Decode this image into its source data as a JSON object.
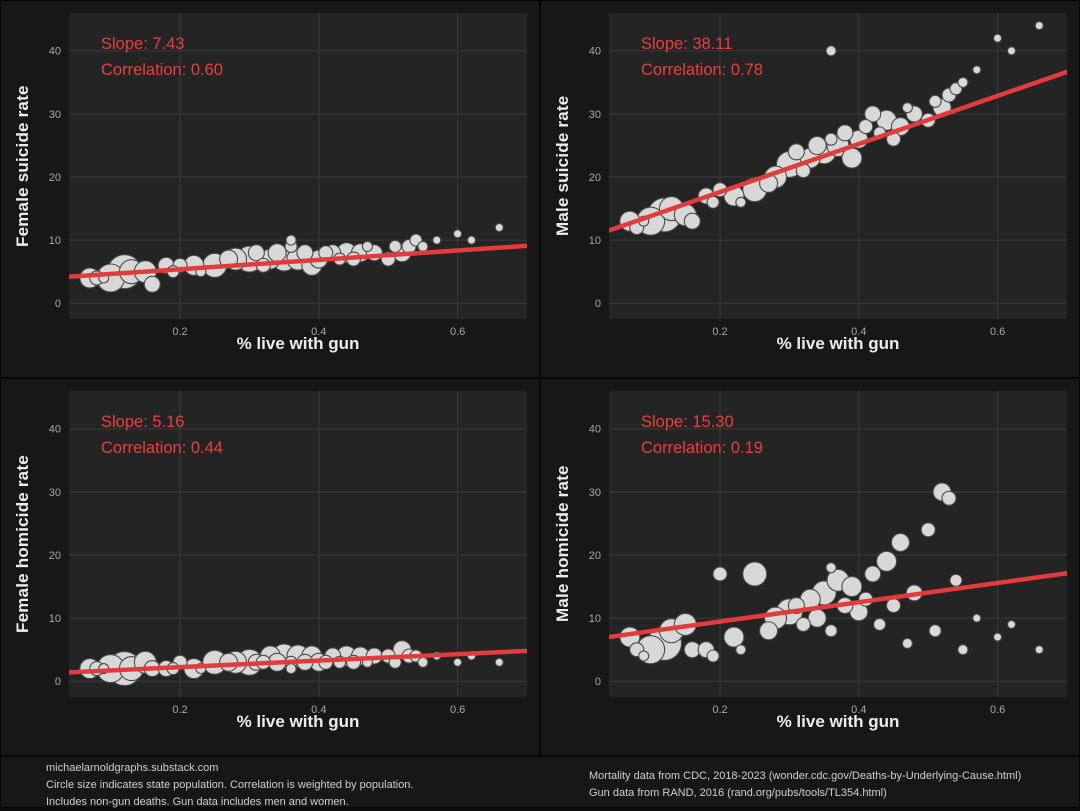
{
  "colors": {
    "page_bg": "#0b0b0b",
    "panel_bg": "#171717",
    "plot_bg": "#242424",
    "grid": "#3b3b3b",
    "point_fill": "#d8d8d8",
    "point_stroke": "#4a4a4a",
    "trend_red": "#e23b3b",
    "annotation_red": "#e8413c",
    "tick_text": "#a9a9a9",
    "axis_text": "#ececec"
  },
  "chart_data": {
    "type": "scatter",
    "xlabel": "% live with gun",
    "xlim": [
      0.04,
      0.7
    ],
    "xticks": [
      0.2,
      0.4,
      0.6
    ],
    "ylim": [
      -2.5,
      46
    ],
    "yticks": [
      0,
      10,
      20,
      30,
      40
    ],
    "grid": true,
    "legend": "none",
    "point_note": "circle size = state population",
    "x_shared": [
      0.07,
      0.08,
      0.09,
      0.1,
      0.12,
      0.13,
      0.15,
      0.16,
      0.18,
      0.19,
      0.2,
      0.22,
      0.23,
      0.25,
      0.27,
      0.28,
      0.3,
      0.31,
      0.32,
      0.33,
      0.34,
      0.35,
      0.36,
      0.36,
      0.37,
      0.38,
      0.39,
      0.4,
      0.41,
      0.42,
      0.43,
      0.44,
      0.45,
      0.46,
      0.47,
      0.48,
      0.5,
      0.51,
      0.52,
      0.53,
      0.54,
      0.55,
      0.57,
      0.6,
      0.62,
      0.66
    ],
    "sizes": [
      10,
      7,
      5,
      14,
      17,
      12,
      11,
      8,
      8,
      6,
      7,
      10,
      5,
      12,
      9,
      11,
      13,
      8,
      7,
      10,
      9,
      12,
      6,
      5,
      11,
      8,
      10,
      9,
      7,
      8,
      6,
      10,
      7,
      9,
      5,
      8,
      7,
      6,
      9,
      7,
      6,
      5,
      4,
      4,
      4,
      4
    ],
    "panels": [
      {
        "ylabel": "Female suicide rate",
        "slope_label": "Slope: 7.43",
        "correlation_label": "Correlation: 0.60",
        "trend": {
          "slope": 7.43,
          "intercept": 3.9
        },
        "y": [
          4,
          4,
          4,
          4,
          5,
          5,
          5,
          3,
          6,
          5,
          6,
          6,
          5,
          6,
          7,
          7,
          7,
          8,
          6,
          7,
          8,
          7,
          9,
          10,
          7,
          8,
          6,
          7,
          8,
          8,
          7,
          8,
          7,
          8,
          9,
          8,
          7,
          9,
          8,
          9,
          10,
          9,
          10,
          11,
          10,
          12
        ]
      },
      {
        "ylabel": "Male suicide rate",
        "slope_label": "Slope: 38.11",
        "correlation_label": "Correlation: 0.78",
        "trend": {
          "slope": 38.11,
          "intercept": 10.0
        },
        "y": [
          13,
          12,
          13,
          13,
          14,
          15,
          14,
          13,
          17,
          16,
          18,
          17,
          16,
          18,
          19,
          20,
          22,
          24,
          21,
          23,
          25,
          24,
          26,
          40,
          25,
          27,
          23,
          26,
          28,
          30,
          27,
          29,
          26,
          28,
          31,
          30,
          29,
          32,
          31,
          33,
          34,
          35,
          37,
          42,
          40,
          44
        ]
      },
      {
        "ylabel": "Female homicide rate",
        "slope_label": "Slope: 5.16",
        "correlation_label": "Correlation: 0.44",
        "trend": {
          "slope": 5.16,
          "intercept": 1.2
        },
        "y": [
          2,
          2,
          2,
          2,
          2,
          2,
          3,
          2,
          2,
          2,
          3,
          2,
          2,
          3,
          3,
          3,
          3,
          3,
          3,
          4,
          3,
          4,
          3,
          2,
          4,
          3,
          4,
          3,
          3,
          4,
          3,
          4,
          3,
          4,
          3,
          4,
          4,
          3,
          5,
          4,
          4,
          3,
          4,
          3,
          4,
          3
        ]
      },
      {
        "ylabel": "Male homicide rate",
        "slope_label": "Slope: 15.30",
        "correlation_label": "Correlation: 0.19",
        "trend": {
          "slope": 15.3,
          "intercept": 6.4
        },
        "y": [
          7,
          5,
          4,
          5,
          6,
          8,
          9,
          5,
          5,
          4,
          17,
          7,
          5,
          17,
          8,
          10,
          11,
          12,
          9,
          13,
          10,
          14,
          8,
          18,
          16,
          12,
          15,
          11,
          13,
          17,
          9,
          19,
          12,
          22,
          6,
          14,
          24,
          8,
          30,
          29,
          16,
          5,
          10,
          7,
          9,
          5
        ]
      }
    ]
  },
  "footer": {
    "left_lines": [
      "michaelarnoldgraphs.substack.com",
      "Circle size indicates state population. Correlation is weighted by population.",
      "Includes non-gun deaths. Gun data includes men and women."
    ],
    "right_lines": [
      "Mortality data from CDC, 2018-2023 (wonder.cdc.gov/Deaths-by-Underlying-Cause.html)",
      "Gun data from RAND, 2016 (rand.org/pubs/tools/TL354.html)"
    ]
  }
}
